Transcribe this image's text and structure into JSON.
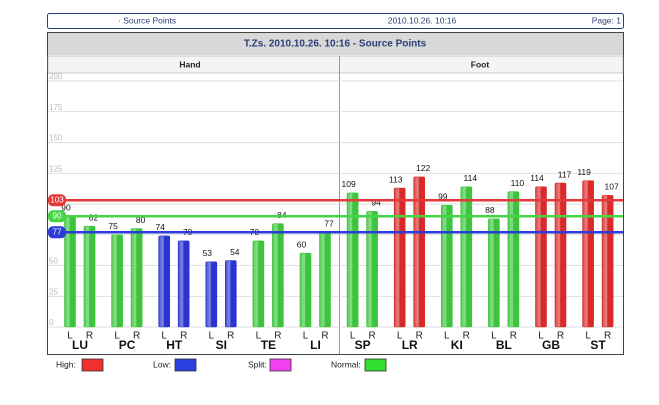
{
  "header": {
    "left": "· Source Points",
    "center": "2010.10.26. 10:16",
    "right": "Page: 1"
  },
  "chart_data": {
    "type": "bar",
    "title": "T.Zs.   2010.10.26. 10:16 - Source Points",
    "sections": [
      "Hand",
      "Foot"
    ],
    "categories": [
      "LU",
      "PC",
      "HT",
      "SI",
      "TE",
      "LI",
      "SP",
      "LR",
      "KI",
      "BL",
      "GB",
      "ST"
    ],
    "series": [
      {
        "name": "L",
        "values": [
          90,
          75,
          74,
          53,
          70,
          60,
          109,
          113,
          99,
          88,
          114,
          119
        ],
        "colors": [
          "#3cc43c",
          "#3cc43c",
          "#2a34d0",
          "#2a34d0",
          "#3cc43c",
          "#3cc43c",
          "#3cc43c",
          "#d82a2a",
          "#3cc43c",
          "#3cc43c",
          "#d82a2a",
          "#d82a2a"
        ]
      },
      {
        "name": "R",
        "values": [
          82,
          80,
          70,
          54,
          84,
          77,
          94,
          122,
          114,
          110,
          117,
          107
        ],
        "colors": [
          "#3cc43c",
          "#3cc43c",
          "#2a34d0",
          "#2a34d0",
          "#3cc43c",
          "#3cc43c",
          "#3cc43c",
          "#d82a2a",
          "#3cc43c",
          "#3cc43c",
          "#d82a2a",
          "#d82a2a"
        ]
      }
    ],
    "ylim": [
      0,
      200
    ],
    "yticks": [
      0,
      25,
      50,
      75,
      100,
      125,
      150,
      175,
      200
    ],
    "grid": true,
    "ref_lines": [
      {
        "value": 103,
        "color": "#e23a3a"
      },
      {
        "value": 90,
        "color": "#44d444"
      },
      {
        "value": 77,
        "color": "#2c3cd8"
      }
    ],
    "legend": [
      {
        "name": "High:",
        "color": "#f03030"
      },
      {
        "name": "Low:",
        "color": "#2a40e0"
      },
      {
        "name": "Split:",
        "color": "#f040f0"
      },
      {
        "name": "Normal:",
        "color": "#30e030"
      }
    ]
  }
}
